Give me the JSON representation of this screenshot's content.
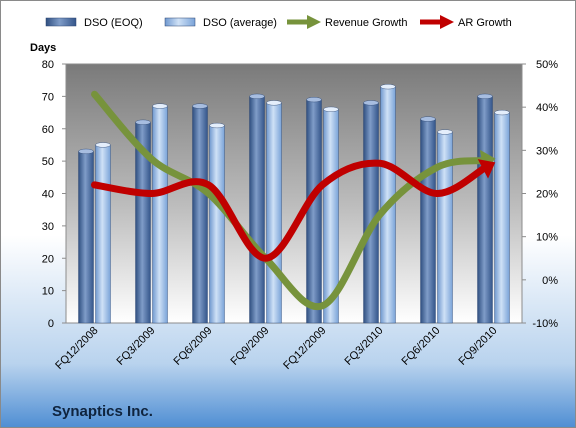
{
  "chart_data": {
    "type": "bar",
    "title": "",
    "company": "Synaptics Inc.",
    "ylabel_left": "Days",
    "categories": [
      "FQ12/2008",
      "FQ3/2009",
      "FQ6/2009",
      "FQ9/2009",
      "FQ12/2009",
      "FQ3/2010",
      "FQ6/2010",
      "FQ9/2010"
    ],
    "left_axis": {
      "min": 0,
      "max": 80,
      "step": 10,
      "ticks": [
        "0",
        "10",
        "20",
        "30",
        "40",
        "50",
        "60",
        "70",
        "80"
      ]
    },
    "right_axis": {
      "min": -10,
      "max": 50,
      "step": 10,
      "ticks": [
        "-10%",
        "0%",
        "10%",
        "20%",
        "30%",
        "40%",
        "50%"
      ]
    },
    "bar_series": [
      {
        "name": "DSO (EOQ)",
        "axis": "left",
        "color": "#4f6fa0",
        "values": [
          53,
          62,
          67,
          70,
          69,
          68,
          63,
          70
        ]
      },
      {
        "name": "DSO (average)",
        "axis": "left",
        "color": "#8eb4e3",
        "values": [
          55,
          67,
          61,
          68,
          66,
          73,
          59,
          65
        ]
      }
    ],
    "line_series": [
      {
        "name": "Revenue Growth",
        "axis": "right",
        "unit": "%",
        "color": "#77933c",
        "values": [
          43,
          28,
          20,
          5,
          -6,
          15,
          26,
          28
        ]
      },
      {
        "name": "AR Growth",
        "axis": "right",
        "unit": "%",
        "color": "#c00000",
        "values": [
          22,
          20,
          22,
          5,
          22,
          27,
          20,
          27
        ]
      }
    ],
    "legend": {
      "placement": "top",
      "items": [
        {
          "label": "DSO (EOQ)",
          "kind": "bar",
          "color": "#4f6fa0"
        },
        {
          "label": "DSO (average)",
          "kind": "bar",
          "color": "#8eb4e3"
        },
        {
          "label": "Revenue Growth",
          "kind": "arrow",
          "color": "#77933c"
        },
        {
          "label": "AR Growth",
          "kind": "arrow",
          "color": "#c00000"
        }
      ]
    },
    "grid": false
  }
}
